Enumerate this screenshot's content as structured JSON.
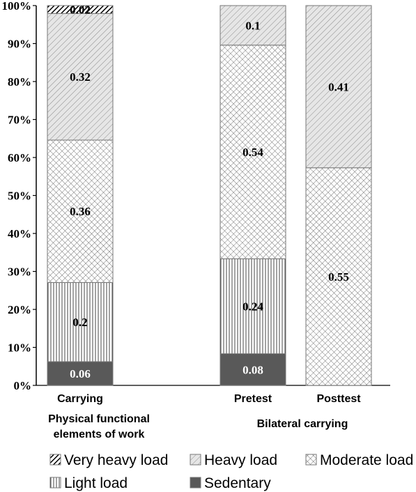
{
  "chart_data": {
    "type": "bar",
    "stacked": true,
    "normalized_percent": true,
    "categories": [
      "Carrying",
      "Pretest",
      "Posttest"
    ],
    "groups": [
      {
        "label_lines": [
          "Physical functional",
          "elements of work"
        ],
        "categories": [
          "Carrying"
        ]
      },
      {
        "label_lines": [
          "Bilateral carrying"
        ],
        "categories": [
          "Pretest",
          "Posttest"
        ]
      }
    ],
    "series": [
      {
        "name": "Sedentary",
        "values": [
          0.06,
          0.08,
          null
        ],
        "labels": [
          "0.06",
          "0.08",
          ""
        ],
        "pattern": "solid-dark"
      },
      {
        "name": "Light load",
        "values": [
          0.2,
          0.24,
          null
        ],
        "labels": [
          "0.2",
          "0.24",
          ""
        ],
        "pattern": "vertical-lines"
      },
      {
        "name": "Moderate load",
        "values": [
          0.36,
          0.54,
          0.55
        ],
        "labels": [
          "0.36",
          "0.54",
          "0.55"
        ],
        "pattern": "crosshatch"
      },
      {
        "name": "Heavy load",
        "values": [
          0.32,
          0.1,
          0.41
        ],
        "labels": [
          "0.32",
          "0.1",
          "0.41"
        ],
        "pattern": "diagonal-light"
      },
      {
        "name": "Very heavy load",
        "values": [
          0.02,
          null,
          null
        ],
        "labels": [
          "0.02",
          "",
          ""
        ],
        "pattern": "diagonal-bold"
      }
    ],
    "ylim": [
      0,
      1
    ],
    "yticks": [
      "0%",
      "10%",
      "20%",
      "30%",
      "40%",
      "50%",
      "60%",
      "70%",
      "80%",
      "90%",
      "100%"
    ],
    "legend_order": [
      "Very heavy load",
      "Heavy load",
      "Moderate load",
      "Light load",
      "Sedentary"
    ],
    "legend_position": "bottom",
    "grid": false,
    "colors": {
      "sedentary_fill": "#595959",
      "pattern_stroke": "#555555",
      "border": "#777777",
      "heavy_stroke": "#8a8a8a",
      "very_heavy_stroke": "#000000"
    }
  }
}
